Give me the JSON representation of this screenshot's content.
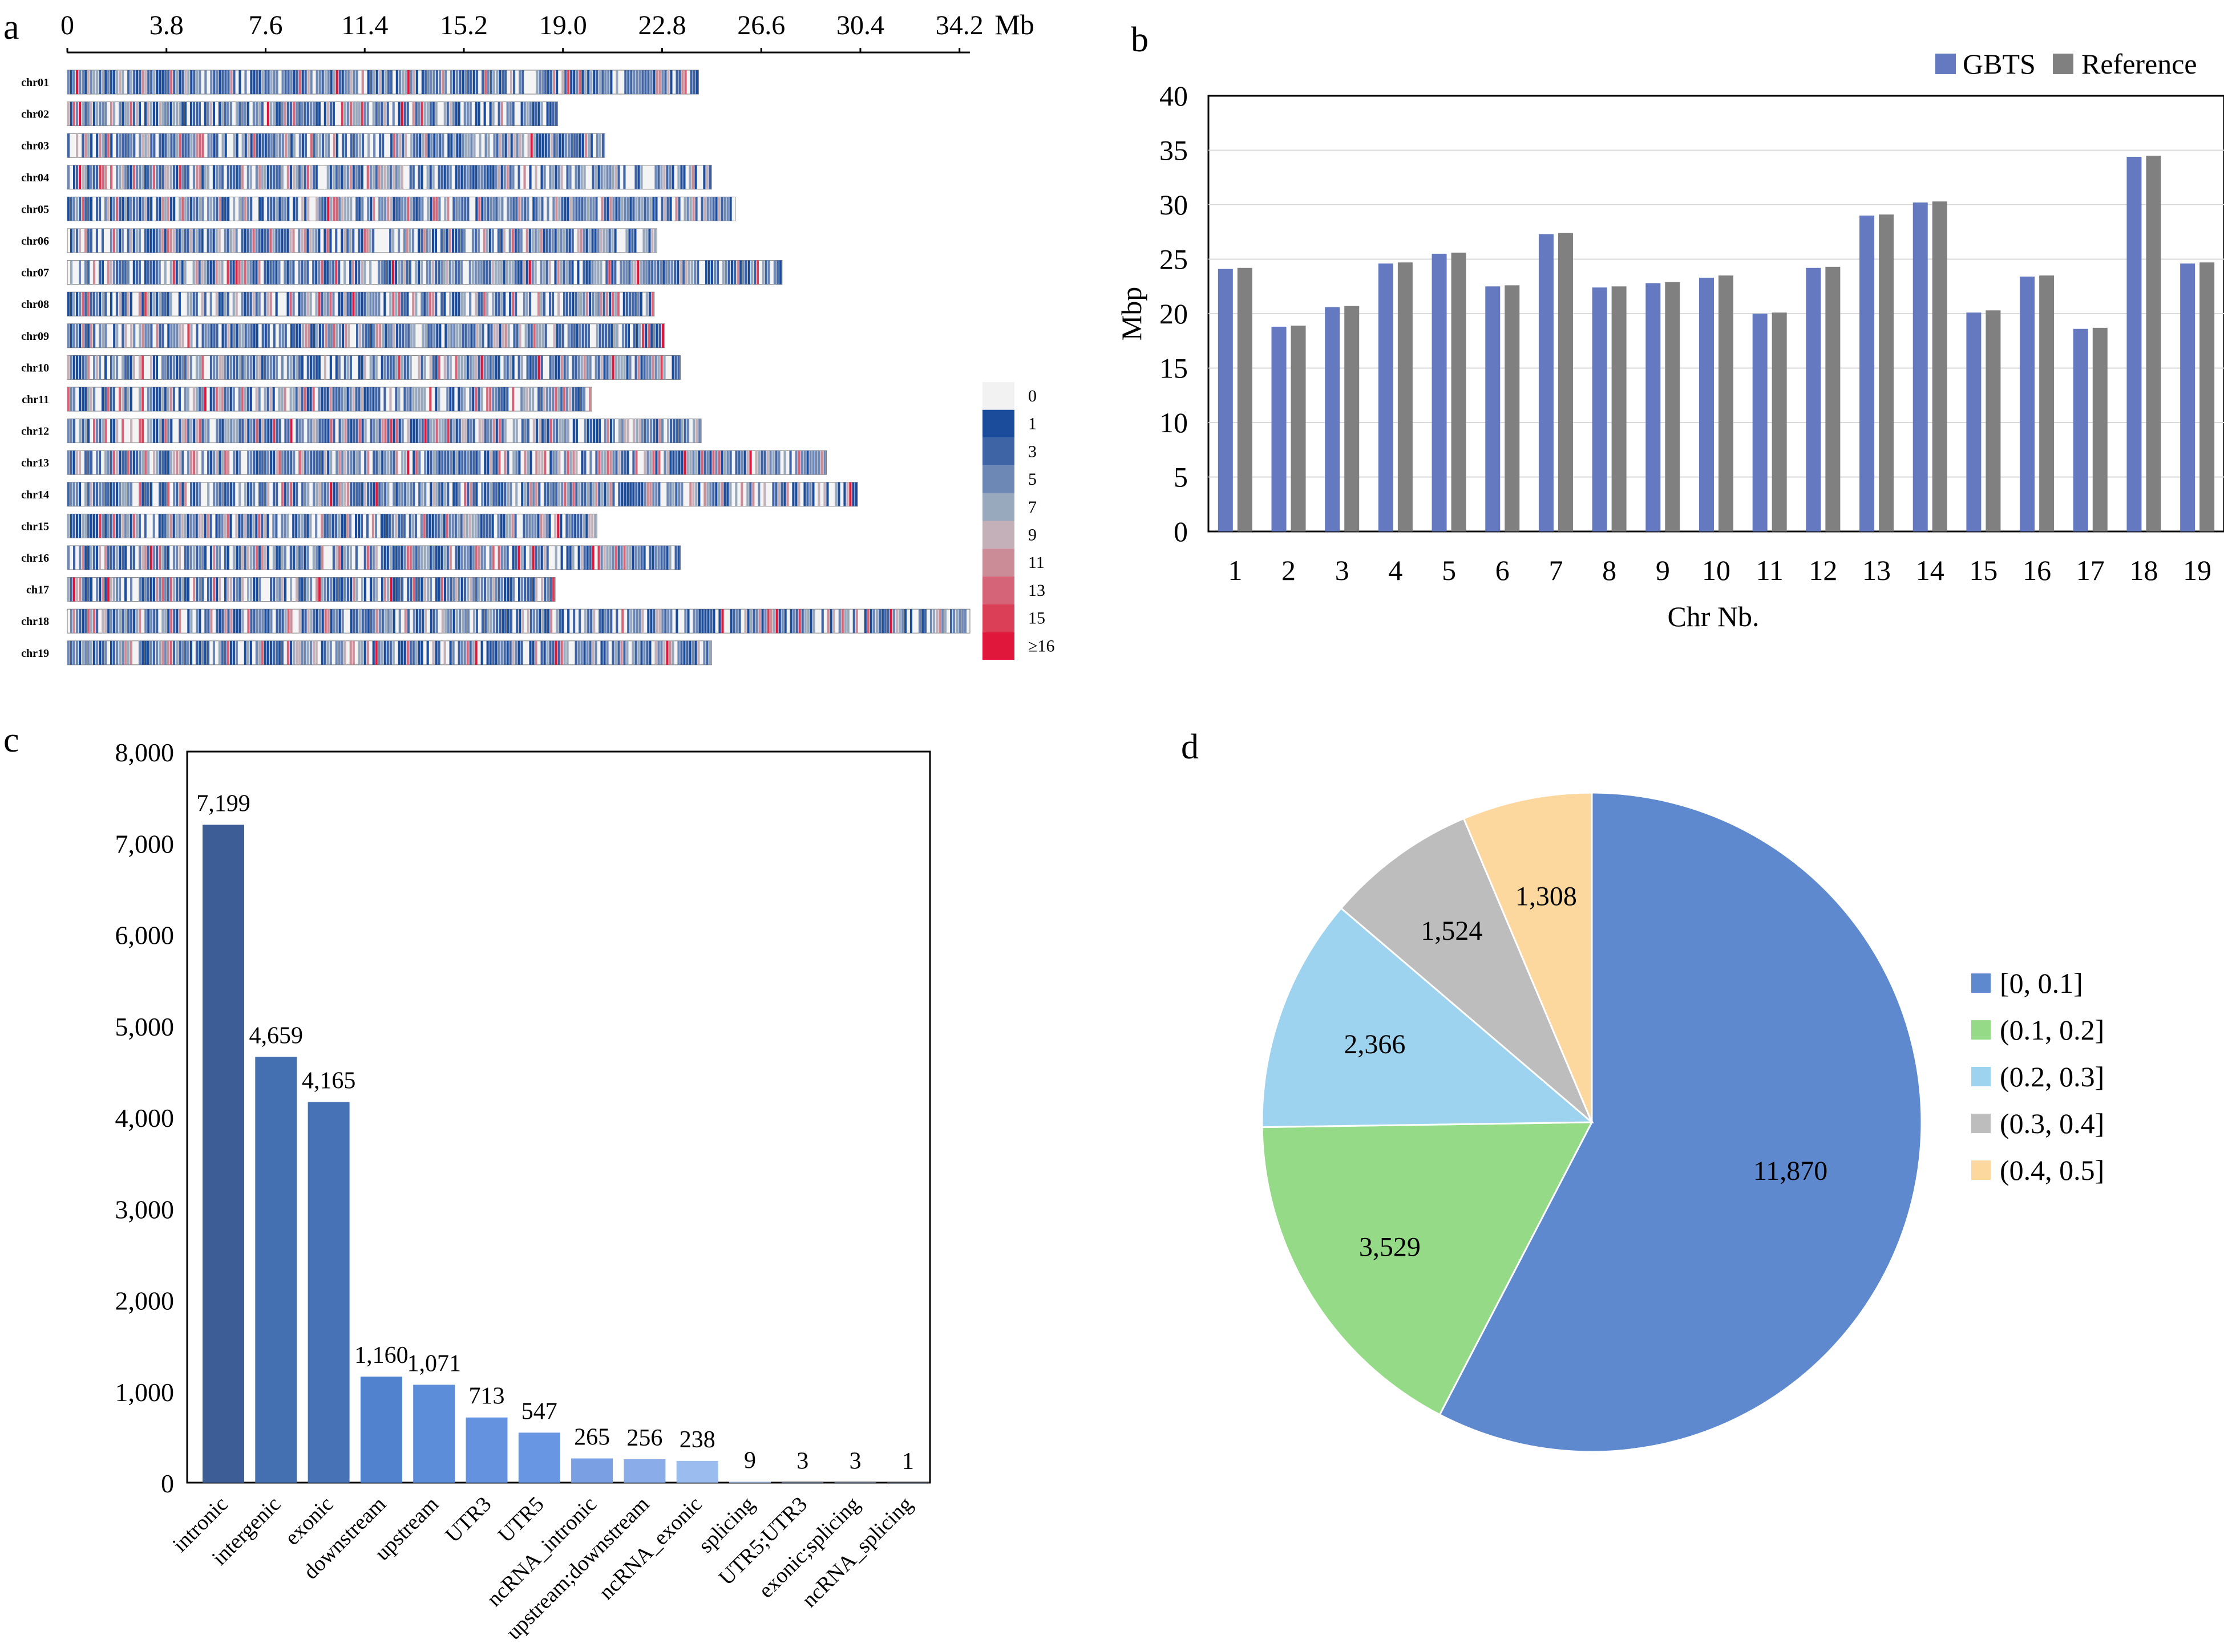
{
  "colors": {
    "gbts": "#6479C0",
    "reference": "#808080",
    "intron_dark": "#3C5D95",
    "density_scale": [
      "#F2F2F2",
      "#1B4C9B",
      "#3E64A6",
      "#6E88B6",
      "#98A8BD",
      "#C3B0B8",
      "#CB8C98",
      "#D56478",
      "#DB3F57",
      "#E0173A"
    ],
    "pie": [
      "#5E89CF",
      "#95DA86",
      "#9DD3EE",
      "#BDBDBD",
      "#FCD79E"
    ]
  },
  "chart_data": [
    {
      "panel": "a",
      "type": "heatmap",
      "title": "",
      "axis_unit": "Mb",
      "axis_ticks": [
        "0",
        "3.8",
        "7.6",
        "11.4",
        "15.2",
        "19.0",
        "22.8",
        "26.6",
        "30.4",
        "34.2"
      ],
      "axis_tick_values": [
        0,
        3.8,
        7.6,
        11.4,
        15.2,
        19.0,
        22.8,
        26.6,
        30.4,
        34.2
      ],
      "xlim": [
        0,
        34.6
      ],
      "chromosomes": [
        {
          "name": "chr01",
          "length": 24.2
        },
        {
          "name": "chr02",
          "length": 18.8
        },
        {
          "name": "chr03",
          "length": 20.6
        },
        {
          "name": "chr04",
          "length": 24.7
        },
        {
          "name": "chr05",
          "length": 25.6
        },
        {
          "name": "chr06",
          "length": 22.6
        },
        {
          "name": "chr07",
          "length": 27.4
        },
        {
          "name": "chr08",
          "length": 22.5
        },
        {
          "name": "chr09",
          "length": 22.9
        },
        {
          "name": "chr10",
          "length": 23.5
        },
        {
          "name": "chr11",
          "length": 20.1
        },
        {
          "name": "chr12",
          "length": 24.3
        },
        {
          "name": "chr13",
          "length": 29.1
        },
        {
          "name": "chr14",
          "length": 30.3
        },
        {
          "name": "chr15",
          "length": 20.3
        },
        {
          "name": "chr16",
          "length": 23.5
        },
        {
          "name": "ch17",
          "length": 18.7
        },
        {
          "name": "chr18",
          "length": 34.6
        },
        {
          "name": "chr19",
          "length": 24.7
        }
      ],
      "legend": [
        "0",
        "1",
        "3",
        "5",
        "7",
        "9",
        "11",
        "13",
        "15",
        "≥16"
      ]
    },
    {
      "panel": "b",
      "type": "bar",
      "title": "",
      "xlabel": "Chr Nb.",
      "ylabel": "Mbp",
      "ylim": [
        0,
        40
      ],
      "yticks": [
        0,
        5,
        10,
        15,
        20,
        25,
        30,
        35,
        40
      ],
      "categories": [
        "1",
        "2",
        "3",
        "4",
        "5",
        "6",
        "7",
        "8",
        "9",
        "10",
        "11",
        "12",
        "13",
        "14",
        "15",
        "16",
        "17",
        "18",
        "19"
      ],
      "series": [
        {
          "name": "GBTS",
          "values": [
            24.1,
            18.8,
            20.6,
            24.6,
            25.5,
            22.5,
            27.3,
            22.4,
            22.8,
            23.3,
            20.0,
            24.2,
            29.0,
            30.2,
            20.1,
            23.4,
            18.6,
            34.4,
            24.6
          ]
        },
        {
          "name": "Reference",
          "values": [
            24.2,
            18.9,
            20.7,
            24.7,
            25.6,
            22.6,
            27.4,
            22.5,
            22.9,
            23.5,
            20.1,
            24.3,
            29.1,
            30.3,
            20.3,
            23.5,
            18.7,
            34.5,
            24.7
          ]
        }
      ],
      "legend_position": "top-right"
    },
    {
      "panel": "c",
      "type": "bar",
      "title": "",
      "xlabel": "",
      "ylabel": "",
      "ylim": [
        0,
        8000
      ],
      "yticks": [
        "0",
        "1,000",
        "2,000",
        "3,000",
        "4,000",
        "5,000",
        "6,000",
        "7,000",
        "8,000"
      ],
      "categories": [
        "intronic",
        "intergenic",
        "exonic",
        "downstream",
        "upstream",
        "UTR3",
        "UTR5",
        "ncRNA_intronic",
        "upstream;downstream",
        "ncRNA_exonic",
        "splicing",
        "UTR5;UTR3",
        "exonic;splicing",
        "ncRNA_splicing"
      ],
      "values": [
        7199,
        4659,
        4165,
        1160,
        1071,
        713,
        547,
        265,
        256,
        238,
        9,
        3,
        3,
        1
      ],
      "value_labels": [
        "7,199",
        "4,659",
        "4,165",
        "1,160",
        "1,071",
        "713",
        "547",
        "265",
        "256",
        "238",
        "9",
        "3",
        "3",
        "1"
      ],
      "bar_colors": [
        "#3C5D95",
        "#4470B2",
        "#4773B6",
        "#5182CE",
        "#5C8DD8",
        "#6492DF",
        "#6896E3",
        "#7A9FE3",
        "#8AADE9",
        "#9BBCEF",
        "#A8C7F5",
        "#B3CFF8",
        "#BDD6FA",
        "#C6DCFC"
      ]
    },
    {
      "panel": "d",
      "type": "pie",
      "title": "",
      "categories": [
        "[0, 0.1]",
        "(0.1, 0.2]",
        "(0.2, 0.3]",
        "(0.3, 0.4]",
        "(0.4, 0.5]"
      ],
      "values": [
        11870,
        3529,
        2366,
        1524,
        1308
      ],
      "value_labels": [
        "11,870",
        "3,529",
        "2,366",
        "1,524",
        "1,308"
      ],
      "legend_position": "right"
    }
  ]
}
